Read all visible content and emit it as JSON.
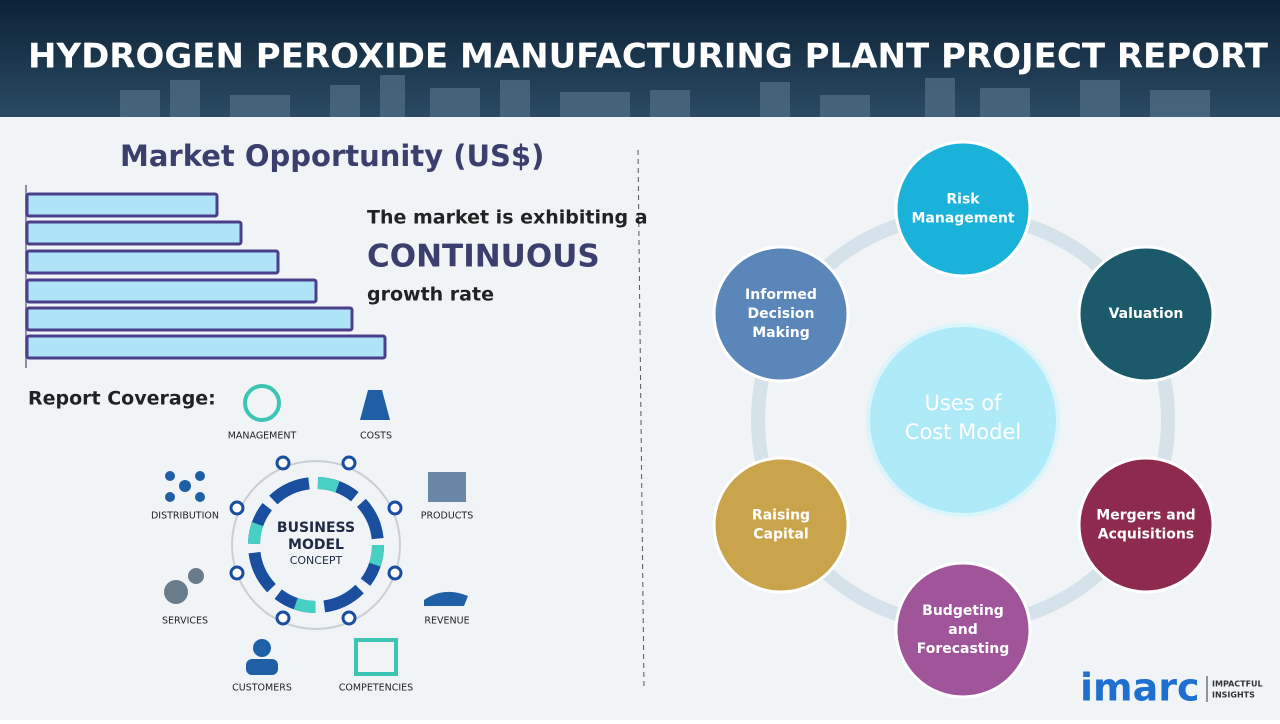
{
  "header": {
    "title": "HYDROGEN PEROXIDE MANUFACTURING PLANT PROJECT REPORT"
  },
  "market": {
    "title": "Market Opportunity (US$)",
    "text": [
      "The market is exhibiting a",
      "CONTINUOUS",
      "growth rate"
    ]
  },
  "coverage": {
    "title": "Report Coverage:",
    "center": [
      "BUSINESS",
      "MODEL",
      "CONCEPT"
    ],
    "items": [
      "MANAGEMENT",
      "COSTS",
      "PRODUCTS",
      "REVENUE",
      "COMPETENCIES",
      "CUSTOMERS",
      "SERVICES",
      "DISTRIBUTION"
    ]
  },
  "uses": {
    "center": [
      "Uses of",
      "Cost Model"
    ],
    "nodes": [
      {
        "label": [
          "Risk",
          "Management"
        ]
      },
      {
        "label": [
          "Valuation"
        ]
      },
      {
        "label": [
          "Mergers and",
          "Acquisitions"
        ]
      },
      {
        "label": [
          "Budgeting",
          "and",
          "Forecasting"
        ]
      },
      {
        "label": [
          "Raising",
          "Capital"
        ]
      },
      {
        "label": [
          "Informed",
          "Decision",
          "Making"
        ]
      }
    ]
  },
  "logo": {
    "brand": "imarc",
    "tagline": [
      "IMPACTFUL",
      "INSIGHTS"
    ]
  }
}
